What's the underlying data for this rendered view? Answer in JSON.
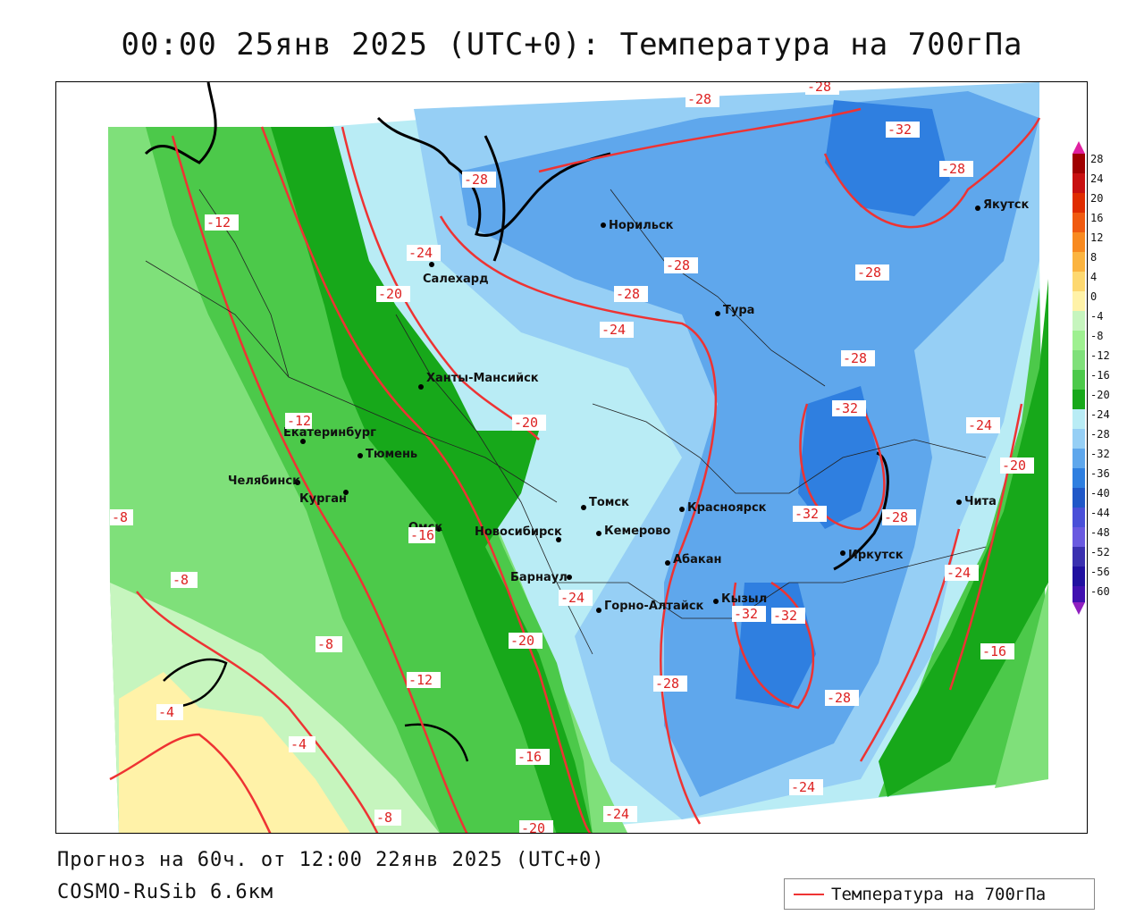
{
  "header": {
    "title": "00:00 25янв 2025 (UTC+0): Температура на 700гПа"
  },
  "footer": {
    "forecast": "Прогноз на 60ч. от 12:00 22янв 2025 (UTC+0)",
    "model": "COSMO-RuSib 6.6км"
  },
  "legend": {
    "label": "Температура на 700гПа",
    "line_color": "#e33333"
  },
  "colorbar": {
    "labels": [
      "28",
      "24",
      "20",
      "16",
      "12",
      "8",
      "4",
      "0",
      "-4",
      "-8",
      "-12",
      "-16",
      "-20",
      "-24",
      "-28",
      "-32",
      "-36",
      "-40",
      "-44",
      "-48",
      "-52",
      "-56",
      "-60"
    ]
  },
  "cities": [
    {
      "name": "Норильск"
    },
    {
      "name": "Якутск"
    },
    {
      "name": "Салехард"
    },
    {
      "name": "Тура"
    },
    {
      "name": "Ханты-Мансийск"
    },
    {
      "name": "Екатеринбург"
    },
    {
      "name": "Тюмень"
    },
    {
      "name": "Челябинск"
    },
    {
      "name": "Курган"
    },
    {
      "name": "Омск"
    },
    {
      "name": "Томск"
    },
    {
      "name": "Красноярск"
    },
    {
      "name": "Новосибирск"
    },
    {
      "name": "Кемерово"
    },
    {
      "name": "Абакан"
    },
    {
      "name": "Иркутск"
    },
    {
      "name": "Чита"
    },
    {
      "name": "Барнаул"
    },
    {
      "name": "Горно-Алтайск"
    },
    {
      "name": "Кызыл"
    }
  ],
  "isotherm_labels": [
    "-28",
    "-28",
    "-32",
    "-28",
    "-28",
    "-24",
    "-28",
    "-28",
    "-24",
    "-28",
    "-12",
    "-20",
    "-28",
    "-32",
    "-20",
    "-24",
    "-12",
    "-20",
    "-8",
    "-28",
    "-32",
    "-8",
    "-16",
    "-24",
    "-24",
    "-8",
    "-20",
    "-32",
    "-32",
    "-16",
    "-28",
    "-28",
    "-12",
    "-4",
    "-4",
    "-16",
    "-24",
    "-8",
    "-20",
    "-24"
  ]
}
